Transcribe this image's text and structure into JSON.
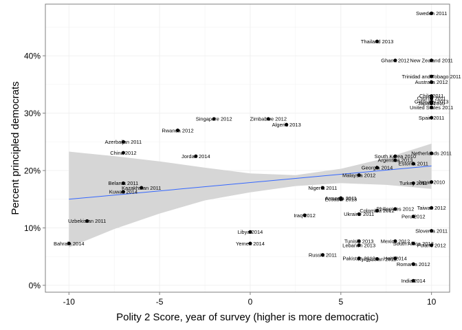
{
  "chart_data": {
    "type": "scatter",
    "title": "",
    "xlabel": "Polity 2 Score, year of survey (higher is more democratic)",
    "ylabel": "Percent principled democrats",
    "xlim": [
      -11.3,
      11
    ],
    "ylim": [
      -0.012,
      0.49
    ],
    "x_ticks": [
      -10,
      -5,
      0,
      5,
      10
    ],
    "x_tick_labels": [
      "-10",
      "-5",
      "0",
      "5",
      "10"
    ],
    "y_ticks": [
      0,
      0.1,
      0.2,
      0.3,
      0.4
    ],
    "y_tick_labels": [
      "0%",
      "10%",
      "20%",
      "30%",
      "40%"
    ],
    "grid": true,
    "point_color": "#000000",
    "fit_line_color": "#3366ff",
    "confidence_band_color": "#d6d6d6",
    "fit_line": {
      "x": [
        -10,
        10
      ],
      "y": [
        0.15,
        0.208
      ]
    },
    "confidence_band": {
      "x": [
        -10,
        -7.5,
        -5,
        -2.5,
        0,
        2.5,
        5,
        7.5,
        10
      ],
      "lower": [
        0.066,
        0.098,
        0.125,
        0.148,
        0.162,
        0.173,
        0.178,
        0.175,
        0.168
      ],
      "upper": [
        0.233,
        0.225,
        0.216,
        0.205,
        0.195,
        0.192,
        0.203,
        0.222,
        0.247
      ]
    },
    "points": [
      {
        "label": "Sweden 2011",
        "x": 10,
        "y": 0.474
      },
      {
        "label": "Thailand 2013",
        "x": 7,
        "y": 0.425
      },
      {
        "label": "Ghana 2012",
        "x": 8,
        "y": 0.392
      },
      {
        "label": "New Zealand 2011",
        "x": 10,
        "y": 0.392
      },
      {
        "label": "Trinidad and Tobago 2011",
        "x": 10,
        "y": 0.364
      },
      {
        "label": "Australia 2012",
        "x": 10,
        "y": 0.354
      },
      {
        "label": "Chile 2011",
        "x": 10,
        "y": 0.33
      },
      {
        "label": "Cyprus 2011",
        "x": 10,
        "y": 0.326
      },
      {
        "label": "Germany 2013",
        "x": 10,
        "y": 0.32
      },
      {
        "label": "Japan 2010",
        "x": 10,
        "y": 0.317
      },
      {
        "label": "United States 2011",
        "x": 10,
        "y": 0.31
      },
      {
        "label": "Spain 2011",
        "x": 10,
        "y": 0.292
      },
      {
        "label": "Singapore 2012",
        "x": -2,
        "y": 0.29
      },
      {
        "label": "Zimbabwe 2012",
        "x": 1,
        "y": 0.29
      },
      {
        "label": "Algeria 2013",
        "x": 2,
        "y": 0.28
      },
      {
        "label": "Rwanda 2012",
        "x": -4,
        "y": 0.27
      },
      {
        "label": "Azerbaijan 2011",
        "x": -7,
        "y": 0.25
      },
      {
        "label": "China 2012",
        "x": -7,
        "y": 0.231
      },
      {
        "label": "Jordan 2014",
        "x": -3,
        "y": 0.225
      },
      {
        "label": "Netherlands 2011",
        "x": 10,
        "y": 0.23
      },
      {
        "label": "South Korea 2010",
        "x": 8,
        "y": 0.225
      },
      {
        "label": "Argentina 2013",
        "x": 8,
        "y": 0.218
      },
      {
        "label": "Estonia 2011",
        "x": 9,
        "y": 0.212
      },
      {
        "label": "Georgia 2014",
        "x": 7,
        "y": 0.205
      },
      {
        "label": "Malaysia 2012",
        "x": 6,
        "y": 0.192
      },
      {
        "label": "Japan 2010",
        "x": 10,
        "y": 0.18
      },
      {
        "label": "Turkey 2011",
        "x": 9,
        "y": 0.178
      },
      {
        "label": "Belarus 2011",
        "x": -7,
        "y": 0.178
      },
      {
        "label": "Kazakhstan 2011",
        "x": -6,
        "y": 0.17
      },
      {
        "label": "Kuwait 2014",
        "x": -7,
        "y": 0.163
      },
      {
        "label": "Nigeria 2011",
        "x": 4,
        "y": 0.17
      },
      {
        "label": "Armenia 2011",
        "x": 5,
        "y": 0.152
      },
      {
        "label": "Ecuador 2013",
        "x": 5,
        "y": 0.15
      },
      {
        "label": "Taiwan 2012",
        "x": 10,
        "y": 0.135
      },
      {
        "label": "Philippines 2012",
        "x": 8,
        "y": 0.133
      },
      {
        "label": "Colombia 2012",
        "x": 7,
        "y": 0.13
      },
      {
        "label": "Ukraine 2011",
        "x": 6,
        "y": 0.124
      },
      {
        "label": "Iraq 2012",
        "x": 3,
        "y": 0.122
      },
      {
        "label": "Peru 2012",
        "x": 9,
        "y": 0.12
      },
      {
        "label": "Uzbekistan 2011",
        "x": -9,
        "y": 0.112
      },
      {
        "label": "Slovenia 2011",
        "x": 10,
        "y": 0.095
      },
      {
        "label": "Libya 2014",
        "x": 0,
        "y": 0.093
      },
      {
        "label": "Mexico 2012",
        "x": 8,
        "y": 0.077
      },
      {
        "label": "South Africa 2013",
        "x": 9,
        "y": 0.073
      },
      {
        "label": "Tunisia 2013",
        "x": 6,
        "y": 0.077
      },
      {
        "label": "Lebanon 2013",
        "x": 6,
        "y": 0.07
      },
      {
        "label": "Poland 2012",
        "x": 10,
        "y": 0.07
      },
      {
        "label": "Yemen 2014",
        "x": 0,
        "y": 0.073
      },
      {
        "label": "Bahrain 2014",
        "x": -10,
        "y": 0.073
      },
      {
        "label": "Russia 2011",
        "x": 4,
        "y": 0.053
      },
      {
        "label": "Pakistan 2012",
        "x": 6,
        "y": 0.047
      },
      {
        "label": "Kyrgyzstan 2011",
        "x": 7,
        "y": 0.046
      },
      {
        "label": "Haiti 2014",
        "x": 8,
        "y": 0.047
      },
      {
        "label": "Romania 2012",
        "x": 9,
        "y": 0.037
      },
      {
        "label": "India 2014",
        "x": 9,
        "y": 0.008
      }
    ]
  }
}
